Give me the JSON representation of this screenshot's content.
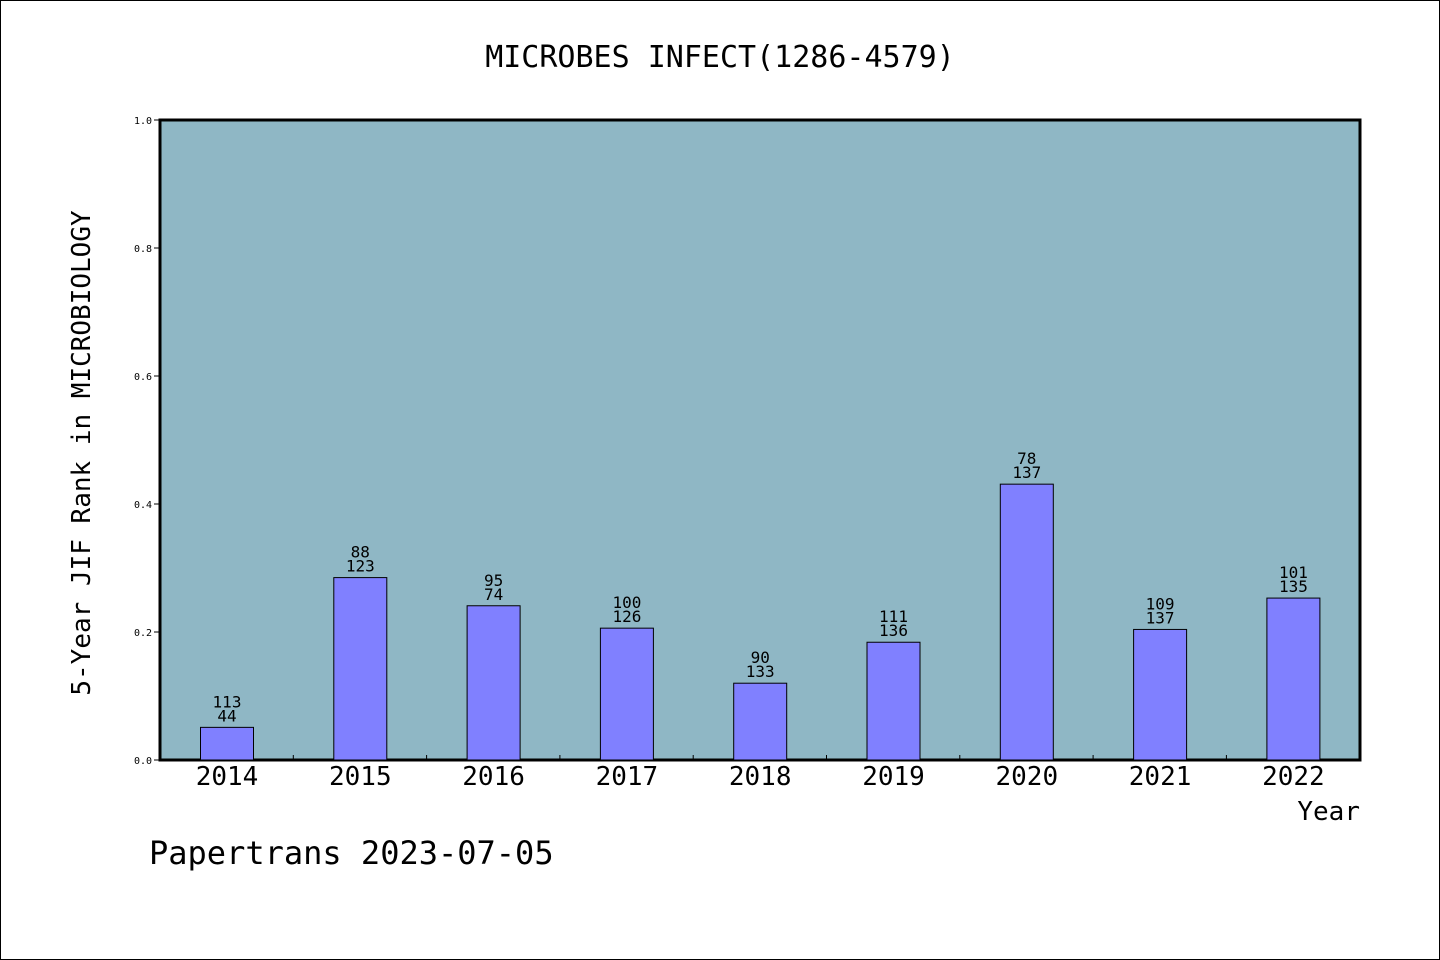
{
  "chart_data": {
    "type": "bar",
    "title": "MICROBES INFECT(1286-4579)",
    "xlabel": "Year",
    "ylabel": "5-Year JIF Rank in MICROBIOLOGY",
    "ylim": [
      0,
      1.0
    ],
    "yticks": [
      "0.0",
      "0.2",
      "0.4",
      "0.6",
      "0.8",
      "1.0"
    ],
    "categories": [
      "2014",
      "2015",
      "2016",
      "2017",
      "2018",
      "2019",
      "2020",
      "2021",
      "2022"
    ],
    "values": [
      0.051,
      0.285,
      0.241,
      0.206,
      0.12,
      0.184,
      0.431,
      0.204,
      0.253
    ],
    "labels_top": [
      "113",
      "88",
      "95",
      "100",
      "90",
      "111",
      "78",
      "109",
      "101"
    ],
    "labels_bottom": [
      "44",
      "123",
      "74",
      "126",
      "133",
      "136",
      "137",
      "137",
      "135"
    ],
    "grid": false,
    "plot_background": "#8fb7c5",
    "bar_color": "#8080ff"
  },
  "footer": "Papertrans 2023-07-05"
}
